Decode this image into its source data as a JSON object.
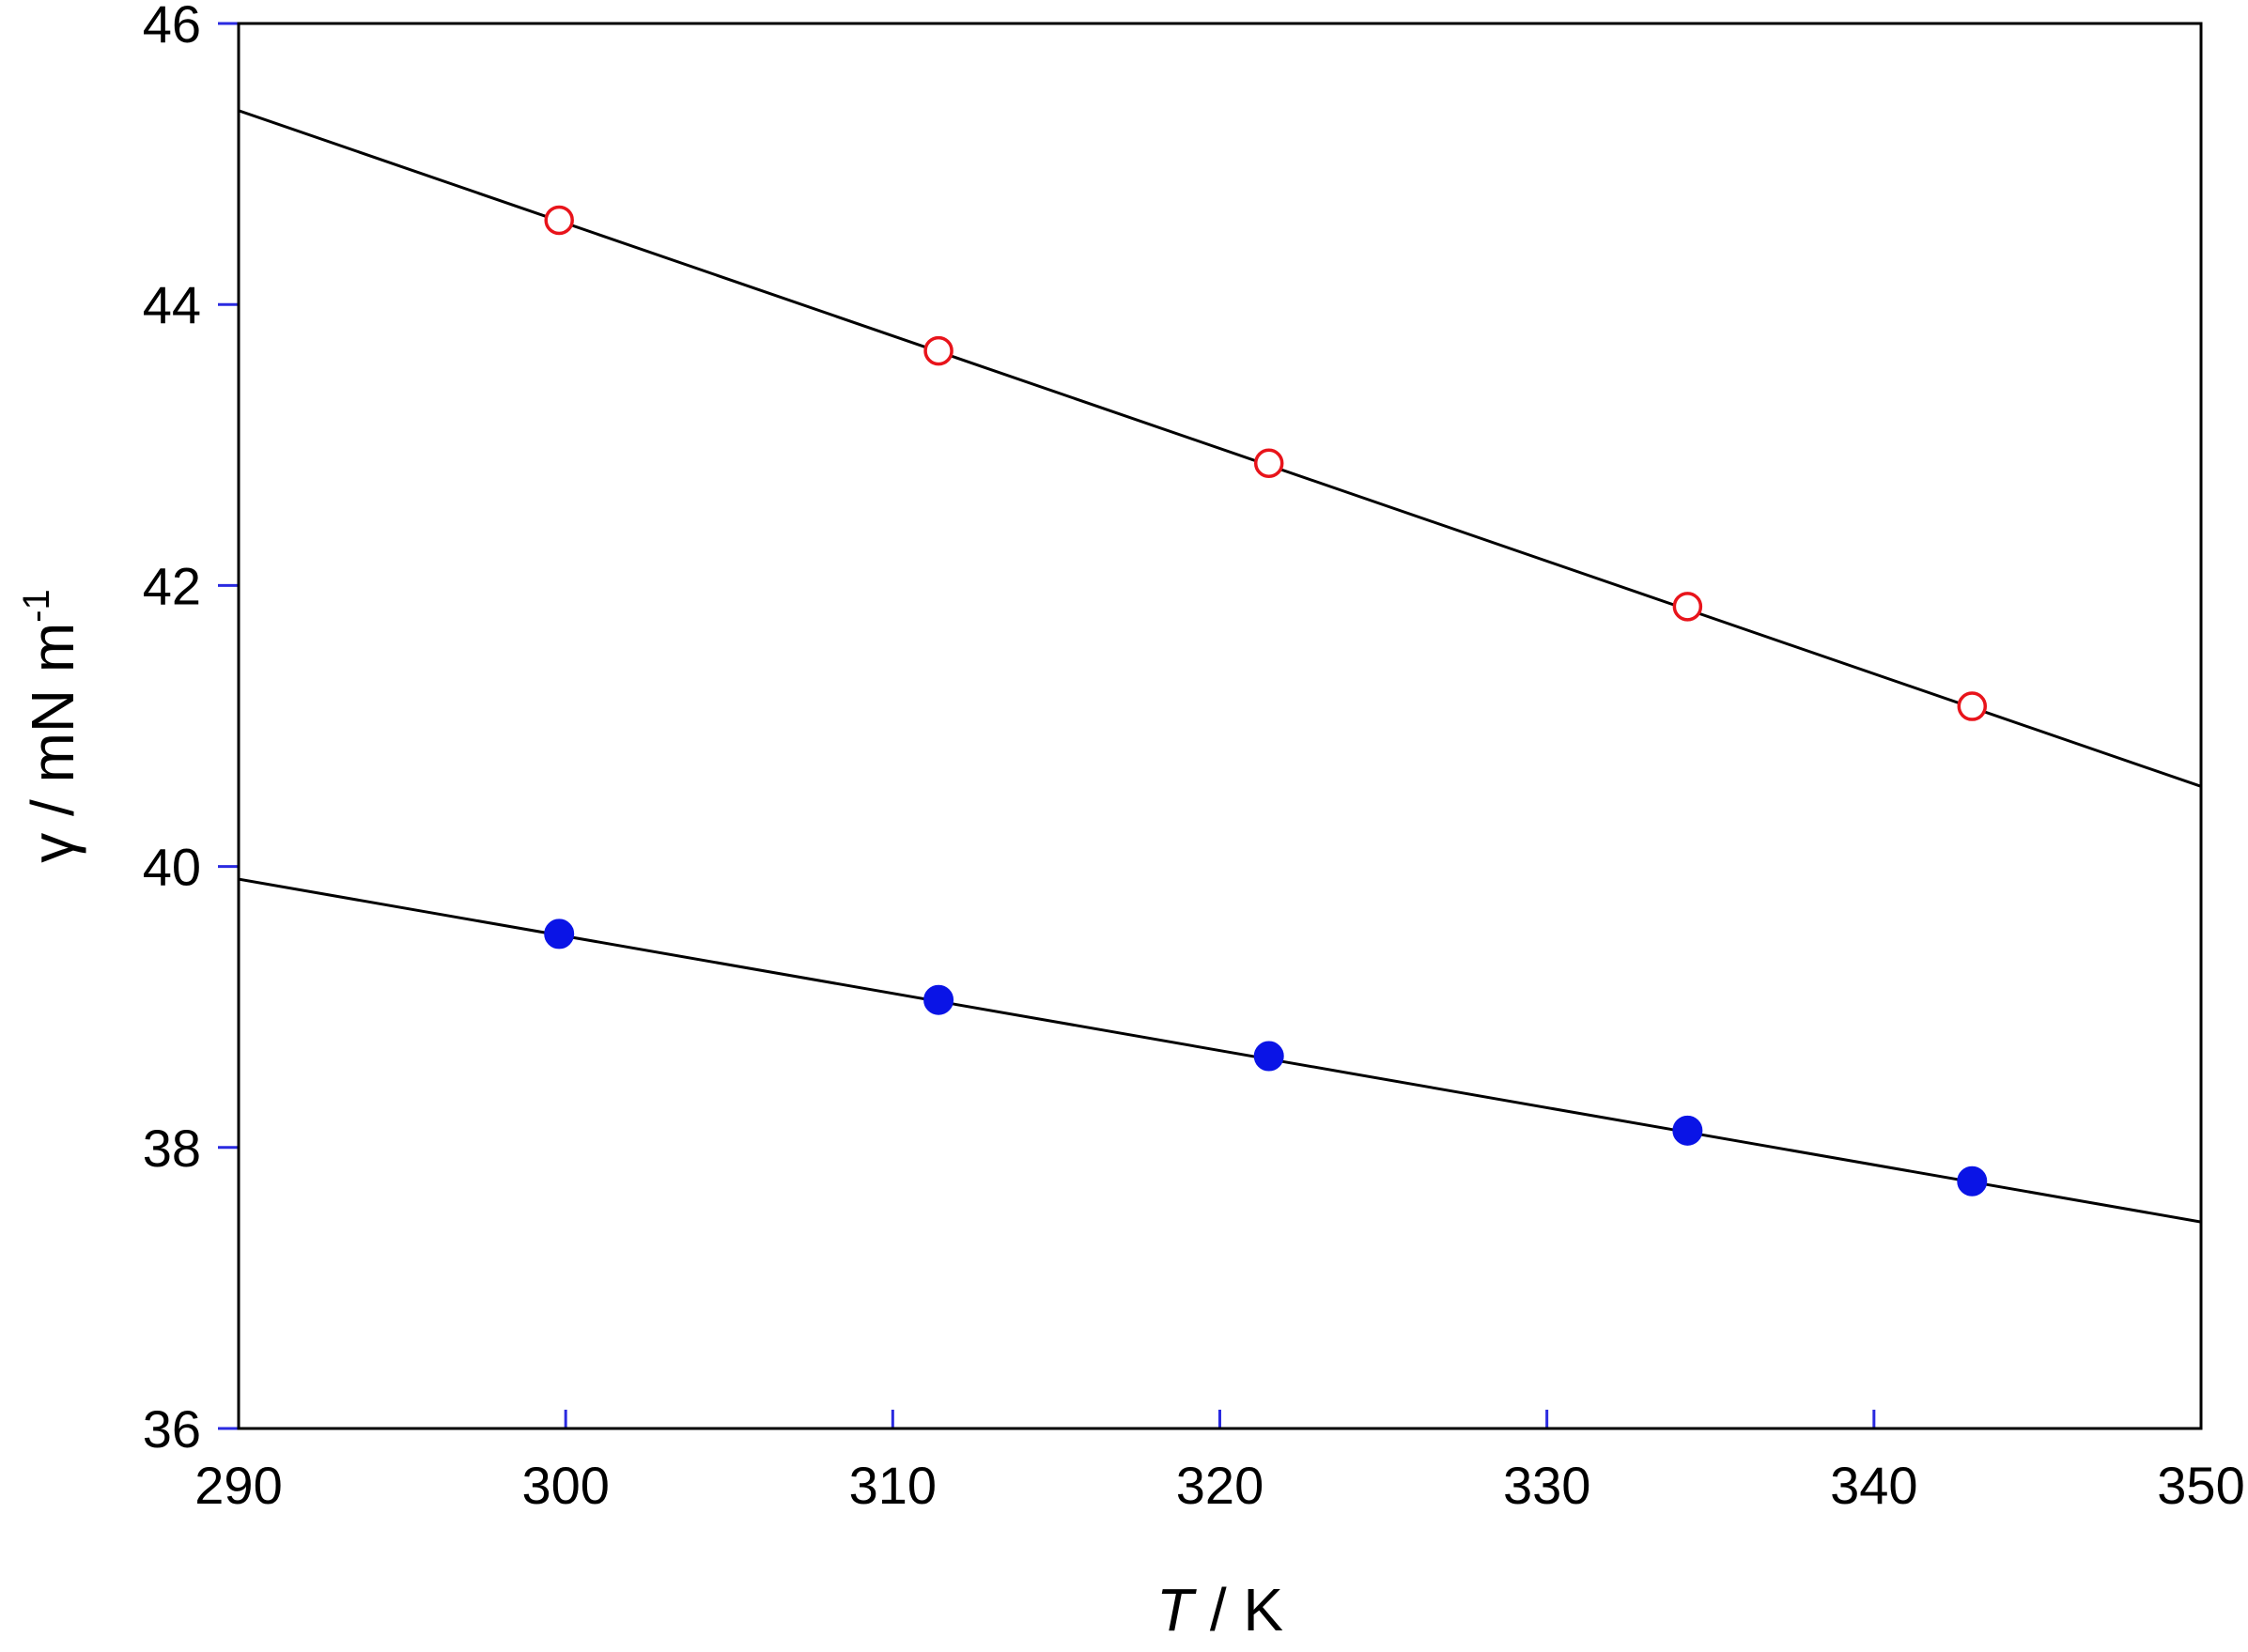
{
  "chart_data": {
    "type": "scatter",
    "title": "",
    "xlabel": {
      "symbol": "T",
      "unit": " / K"
    },
    "ylabel": {
      "symbol": "γ",
      "unit": " / mN m",
      "exponent": "-1"
    },
    "xlim": [
      290,
      350
    ],
    "ylim": [
      36,
      46
    ],
    "xticks": [
      290,
      300,
      310,
      320,
      330,
      340,
      350
    ],
    "yticks": [
      36,
      38,
      40,
      42,
      44,
      46
    ],
    "grid": false,
    "legend": "none",
    "series": [
      {
        "marker": "open-circle",
        "color": "#e8141b",
        "x": [
          299.8,
          311.4,
          321.5,
          334.3,
          343.0
        ],
        "y": [
          44.6,
          43.67,
          42.87,
          41.85,
          41.14
        ],
        "fit": {
          "x": [
            290,
            350
          ],
          "y": [
            45.38,
            40.57
          ]
        }
      },
      {
        "marker": "filled-circle",
        "color": "#0a14e6",
        "x": [
          299.8,
          311.4,
          321.5,
          334.3,
          343.0
        ],
        "y": [
          39.52,
          39.05,
          38.65,
          38.12,
          37.76
        ],
        "fit": {
          "x": [
            290,
            350
          ],
          "y": [
            39.91,
            37.47
          ]
        }
      }
    ],
    "colors": {
      "axis": "#000000",
      "tick": "#2a2ae0",
      "fit_line": "#000000"
    }
  }
}
